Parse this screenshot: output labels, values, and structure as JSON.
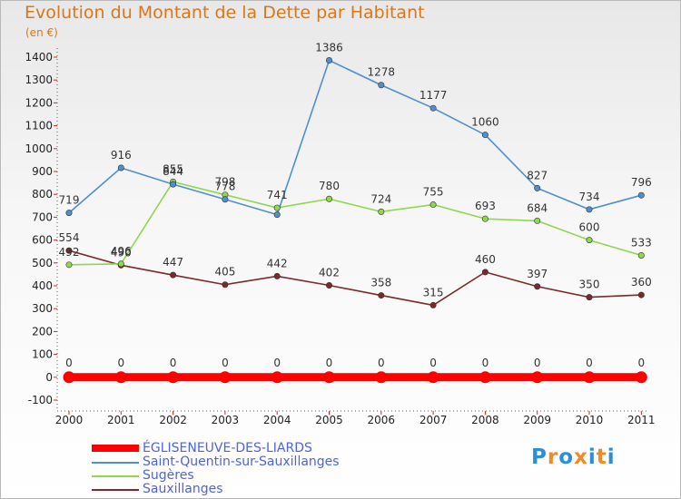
{
  "header": {
    "title": "Evolution du Montant de la Dette par Habitant",
    "unit": "(en €)"
  },
  "logo": {
    "letters": [
      "P",
      "r",
      "o",
      "x",
      "i",
      "t",
      "i"
    ],
    "colors": [
      "#2b8ed6",
      "#f08a24",
      "#2b8ed6",
      "#f08a24",
      "#2b8ed6",
      "#f08a24",
      "#2b8ed6"
    ]
  },
  "chart_data": {
    "type": "line",
    "title": "Evolution du Montant de la Dette par Habitant",
    "ylabel": "(en €)",
    "xlabel": "",
    "ylim": [
      -100,
      1400
    ],
    "yticks": [
      -100,
      0,
      100,
      200,
      300,
      400,
      500,
      600,
      700,
      800,
      900,
      1000,
      1100,
      1200,
      1300,
      1400
    ],
    "grid": false,
    "legend_position": "bottom",
    "x": [
      "2000",
      "2001",
      "2002",
      "2003",
      "2004",
      "2005",
      "2006",
      "2007",
      "2008",
      "2009",
      "2010",
      "2011"
    ],
    "series": [
      {
        "name": "ÉGLISENEUVE-DES-LIARDS",
        "color": "#ff0000",
        "values": [
          0,
          0,
          0,
          0,
          0,
          0,
          0,
          0,
          0,
          0,
          0,
          0
        ]
      },
      {
        "name": "Saint-Quentin-sur-Sauxillanges",
        "color": "#4f8fd0",
        "values": [
          719,
          916,
          844,
          778,
          711,
          1386,
          1278,
          1177,
          1060,
          827,
          734,
          796
        ]
      },
      {
        "name": "Sugères",
        "color": "#8ed84e",
        "values": [
          492,
          496,
          855,
          798,
          741,
          780,
          724,
          755,
          693,
          684,
          600,
          533
        ]
      },
      {
        "name": "Sauxillanges",
        "color": "#7a2a2a",
        "values": [
          554,
          490,
          447,
          405,
          442,
          402,
          358,
          315,
          460,
          397,
          350,
          360
        ]
      }
    ],
    "labels": [
      [
        "0",
        "0",
        "0",
        "0",
        "0",
        "0",
        "0",
        "0",
        "0",
        "0",
        "0",
        "0"
      ],
      [
        "719",
        "916",
        "844",
        "778",
        "",
        "1386",
        "1278",
        "1177",
        "1060",
        "827",
        "734",
        "796"
      ],
      [
        "492",
        "496",
        "855",
        "798",
        "741",
        "780",
        "724",
        "755",
        "693",
        "684",
        "600",
        "533"
      ],
      [
        "554",
        "490",
        "447",
        "405",
        "442",
        "402",
        "358",
        "315",
        "460",
        "397",
        "350",
        "360"
      ]
    ]
  }
}
